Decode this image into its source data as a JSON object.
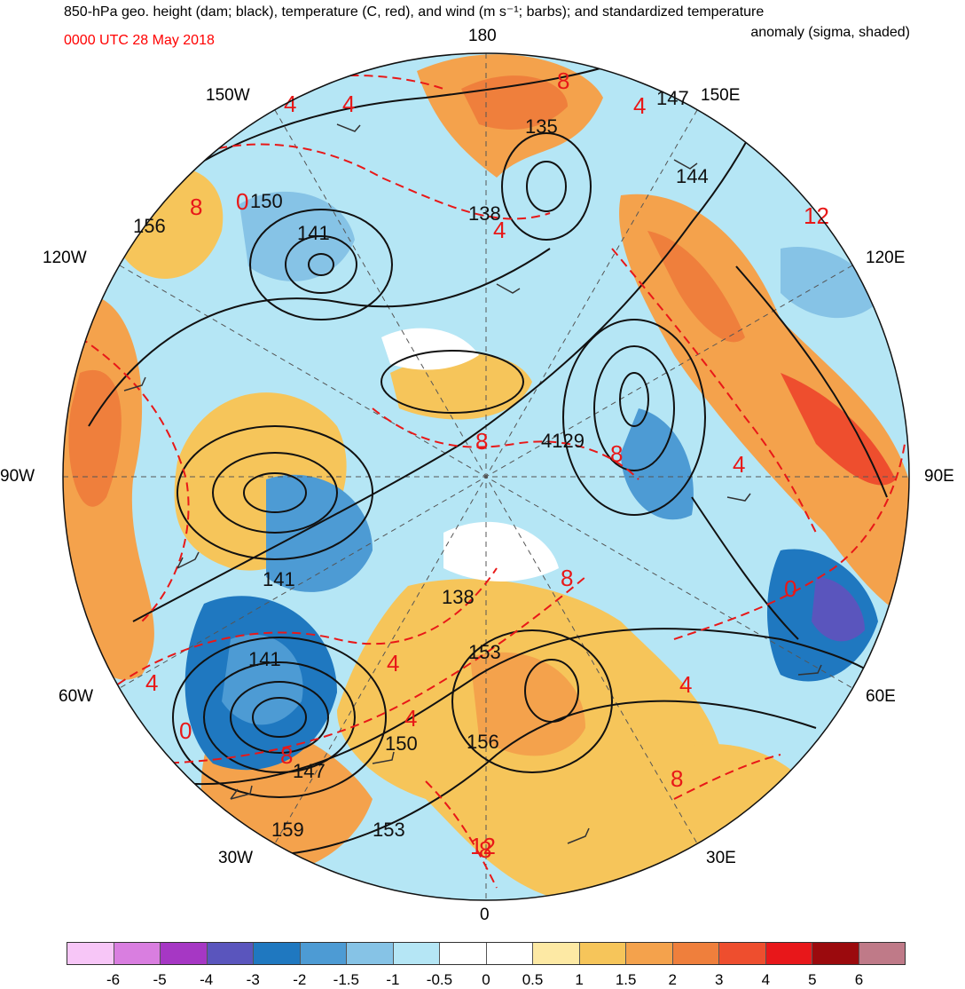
{
  "title": {
    "line1": "850-hPa geo. height (dam; black), temperature (C, red), and wind (m s⁻¹; barbs); and standardized temperature",
    "line2": "anomaly (sigma, shaded)",
    "date": "0000 UTC 28 May 2018"
  },
  "longitude_labels": {
    "n180": "180",
    "w150": "150W",
    "e150": "150E",
    "w120": "120W",
    "e120": "120E",
    "w90": "90W",
    "e90": "90E",
    "w60": "60W",
    "e60": "60E",
    "w30": "30W",
    "e30": "30E",
    "s0": "0"
  },
  "height_contour_labels": [
    "135",
    "147",
    "144",
    "138",
    "150",
    "141",
    "156",
    "4129",
    "141",
    "138",
    "141",
    "153",
    "150",
    "156",
    "147",
    "159",
    "153"
  ],
  "temperature_contour_labels": [
    "8",
    "4",
    "4",
    "4",
    "8",
    "0",
    "4",
    "12",
    "8",
    "8",
    "4",
    "4",
    "8",
    "8",
    "0",
    "4",
    "4",
    "0",
    "4",
    "8",
    "8",
    "12"
  ],
  "colorbar": {
    "colors": [
      "#f7c6f7",
      "#d97ee0",
      "#a637c4",
      "#5a55bd",
      "#1f78c0",
      "#4d9bd4",
      "#86c3e6",
      "#b5e6f5",
      "#ffffff",
      "#ffffff",
      "#fde9a4",
      "#f6c55a",
      "#f4a24c",
      "#ef7f3c",
      "#ee4e2e",
      "#e8171a",
      "#9b0a0d",
      "#bf7a88"
    ],
    "labels": [
      "-6",
      "-5",
      "-4",
      "-3",
      "-2",
      "-1.5",
      "-1",
      "-0.5",
      "0",
      "0.5",
      "1",
      "1.5",
      "2",
      "3",
      "4",
      "5",
      "6"
    ]
  }
}
